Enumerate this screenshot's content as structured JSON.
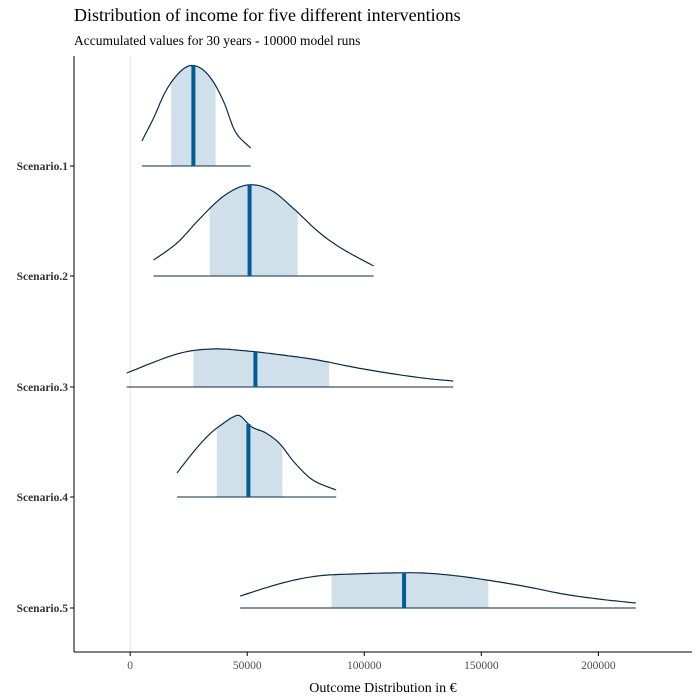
{
  "chart_data": {
    "type": "ridgeline",
    "title": "Distribution of income for five different interventions",
    "subtitle": "Accumulated values for 30 years - 10000 model runs",
    "xlabel": "Outcome Distribution in €",
    "ylabel": "",
    "xlim": [
      -24000,
      240000
    ],
    "x_ticks": [
      0,
      50000,
      100000,
      150000,
      200000
    ],
    "x_tick_labels": [
      "0",
      "50000",
      "100000",
      "150000",
      "200000"
    ],
    "reference_line_x": 0,
    "colors": {
      "curve": "#0b2a45",
      "median": "#005b96",
      "interval_fill": "#d0e0eb",
      "zero_line": "#e6e6e6",
      "axis": "#000000"
    },
    "series": [
      {
        "name": "Scenario.1",
        "min": 5000,
        "max": 51500,
        "q_low": 17500,
        "q_high": 36500,
        "median": 27000,
        "density": [
          [
            5000,
            0.25
          ],
          [
            10000,
            0.48
          ],
          [
            15000,
            0.74
          ],
          [
            20000,
            0.91
          ],
          [
            25000,
            1.0
          ],
          [
            30000,
            0.98
          ],
          [
            35000,
            0.86
          ],
          [
            40000,
            0.64
          ],
          [
            45000,
            0.34
          ],
          [
            51500,
            0.18
          ]
        ]
      },
      {
        "name": "Scenario.2",
        "min": 10000,
        "max": 104000,
        "q_low": 34000,
        "q_high": 71500,
        "median": 51000,
        "density": [
          [
            10000,
            0.16
          ],
          [
            20000,
            0.33
          ],
          [
            30000,
            0.58
          ],
          [
            40000,
            0.8
          ],
          [
            50000,
            0.91
          ],
          [
            60000,
            0.86
          ],
          [
            70000,
            0.67
          ],
          [
            80000,
            0.45
          ],
          [
            90000,
            0.28
          ],
          [
            104000,
            0.1
          ]
        ]
      },
      {
        "name": "Scenario.3",
        "min": -1500,
        "max": 138000,
        "q_low": 27000,
        "q_high": 85000,
        "median": 53500,
        "density": [
          [
            -1500,
            0.14
          ],
          [
            20000,
            0.33
          ],
          [
            35000,
            0.38
          ],
          [
            50000,
            0.36
          ],
          [
            65000,
            0.32
          ],
          [
            80000,
            0.27
          ],
          [
            95000,
            0.2
          ],
          [
            110000,
            0.14
          ],
          [
            125000,
            0.09
          ],
          [
            138000,
            0.06
          ]
        ]
      },
      {
        "name": "Scenario.4",
        "min": 20000,
        "max": 88000,
        "q_low": 37000,
        "q_high": 65000,
        "median": 50500,
        "density": [
          [
            20000,
            0.24
          ],
          [
            27000,
            0.45
          ],
          [
            34000,
            0.63
          ],
          [
            40000,
            0.74
          ],
          [
            44000,
            0.8
          ],
          [
            47000,
            0.81
          ],
          [
            52000,
            0.7
          ],
          [
            58000,
            0.64
          ],
          [
            64000,
            0.53
          ],
          [
            70000,
            0.35
          ],
          [
            78000,
            0.17
          ],
          [
            88000,
            0.07
          ]
        ]
      },
      {
        "name": "Scenario.5",
        "min": 47000,
        "max": 216000,
        "q_low": 86000,
        "q_high": 153000,
        "median": 117000,
        "density": [
          [
            47000,
            0.12
          ],
          [
            65000,
            0.25
          ],
          [
            80000,
            0.32
          ],
          [
            95000,
            0.34
          ],
          [
            110000,
            0.35
          ],
          [
            125000,
            0.35
          ],
          [
            140000,
            0.32
          ],
          [
            155000,
            0.27
          ],
          [
            170000,
            0.21
          ],
          [
            185000,
            0.14
          ],
          [
            200000,
            0.09
          ],
          [
            216000,
            0.05
          ]
        ]
      }
    ]
  }
}
